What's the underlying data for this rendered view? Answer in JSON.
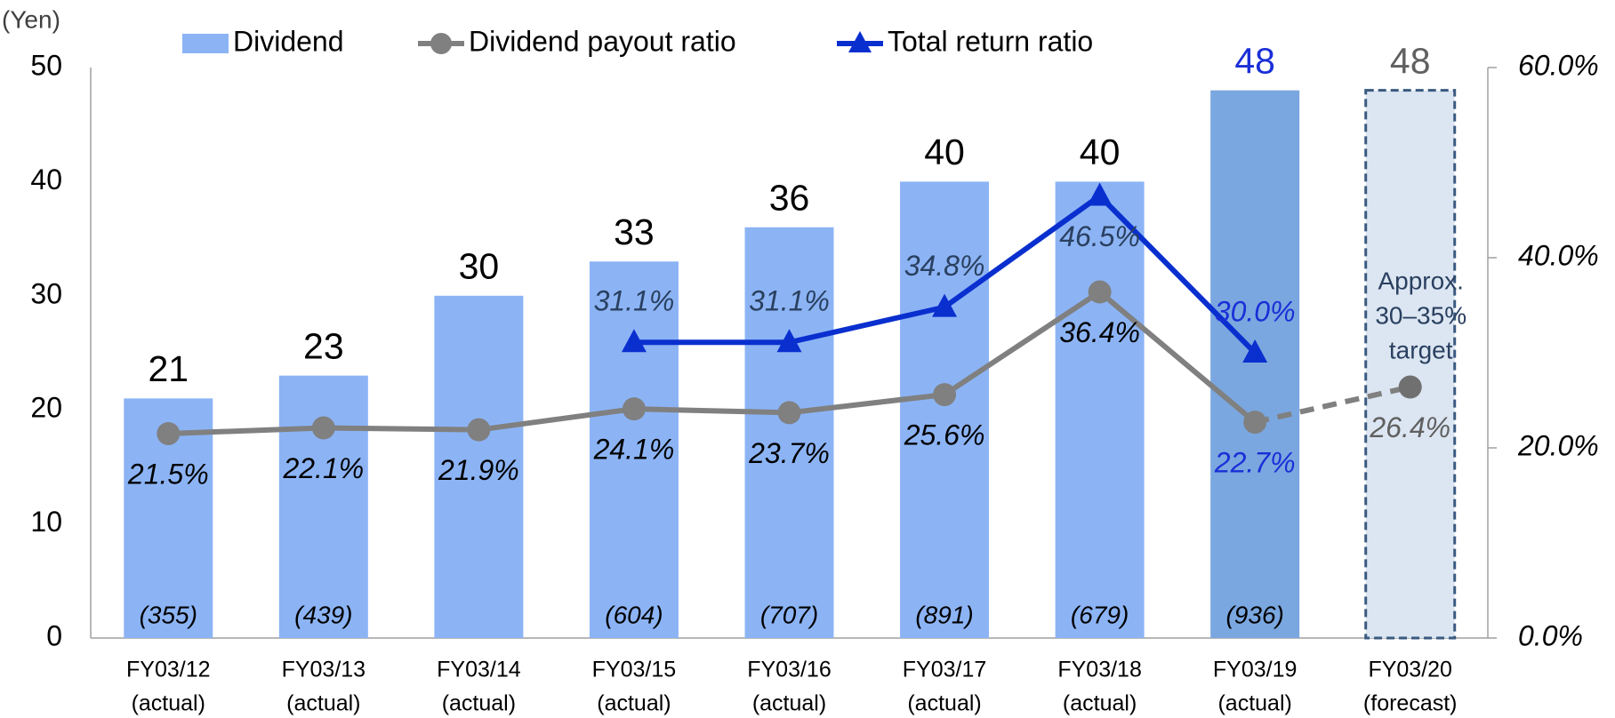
{
  "chart_data": {
    "type": "bar",
    "y_label": "(Yen)",
    "categories": [
      "FY03/12",
      "FY03/13",
      "FY03/14",
      "FY03/15",
      "FY03/16",
      "FY03/17",
      "FY03/18",
      "FY03/19",
      "FY03/20"
    ],
    "category_notes": [
      "(actual)",
      "(actual)",
      "(actual)",
      "(actual)",
      "(actual)",
      "(actual)",
      "(actual)",
      "(actual)",
      "(forecast)"
    ],
    "ylim": [
      0,
      50
    ],
    "yticks": [
      0,
      10,
      20,
      30,
      40,
      50
    ],
    "y2lim": [
      0,
      60
    ],
    "y2ticks": [
      {
        "value": 0,
        "label": "0.0%"
      },
      {
        "value": 20,
        "label": "20.0%"
      },
      {
        "value": 40,
        "label": "40.0%"
      },
      {
        "value": 60,
        "label": "60.0%"
      }
    ],
    "series": [
      {
        "name": "Dividend",
        "type": "bar",
        "color": "#8cb4f5",
        "values": [
          21,
          23,
          30,
          33,
          36,
          40,
          40,
          48,
          48
        ],
        "colors": [
          "#8cb4f5",
          "#8cb4f5",
          "#8cb4f5",
          "#8cb4f5",
          "#8cb4f5",
          "#8cb4f5",
          "#8cb4f5",
          "#7aa7e0",
          "#dce6f2"
        ],
        "label_colors": [
          "#000000",
          "#000000",
          "#000000",
          "#000000",
          "#000000",
          "#000000",
          "#000000",
          "#1a2fd6",
          "#606060"
        ],
        "dashed": [
          false,
          false,
          false,
          false,
          false,
          false,
          false,
          false,
          true
        ],
        "bottom_labels": [
          "(355)",
          "(439)",
          null,
          "(604)",
          "(707)",
          "(891)",
          "(679)",
          "(936)",
          null
        ]
      },
      {
        "name": "Dividend payout ratio",
        "type": "line",
        "marker": "circle",
        "axis": "y2",
        "color": "#808080",
        "values": [
          21.5,
          22.1,
          21.9,
          24.1,
          23.7,
          25.6,
          36.4,
          22.7,
          26.4
        ],
        "value_labels": [
          "21.5%",
          "22.1%",
          "21.9%",
          "24.1%",
          "23.7%",
          "25.6%",
          "36.4%",
          "22.7%",
          "26.4%"
        ],
        "label_colors": [
          "#000000",
          "#000000",
          "#000000",
          "#000000",
          "#000000",
          "#000000",
          "#000000",
          "#1a2fd6",
          "#606060"
        ],
        "dashed": [
          false,
          false,
          false,
          false,
          false,
          false,
          false,
          false,
          true
        ]
      },
      {
        "name": "Total return ratio",
        "type": "line",
        "marker": "triangle",
        "axis": "y2",
        "color": "#0a2fcf",
        "values": [
          null,
          null,
          null,
          31.1,
          31.1,
          34.8,
          46.5,
          30.0,
          null
        ],
        "value_labels": [
          null,
          null,
          null,
          "31.1%",
          "31.1%",
          "34.8%",
          "46.5%",
          "30.0%",
          null
        ],
        "label_colors": [
          "#2a4060",
          "#2a4060",
          "#2a4060",
          "#2a4060",
          "#2a4060",
          "#2a4060",
          "#2a4060",
          "#1a2fd6",
          "#2a4060"
        ]
      }
    ],
    "annotation": [
      "Approx.",
      "30–35%",
      "target"
    ]
  }
}
